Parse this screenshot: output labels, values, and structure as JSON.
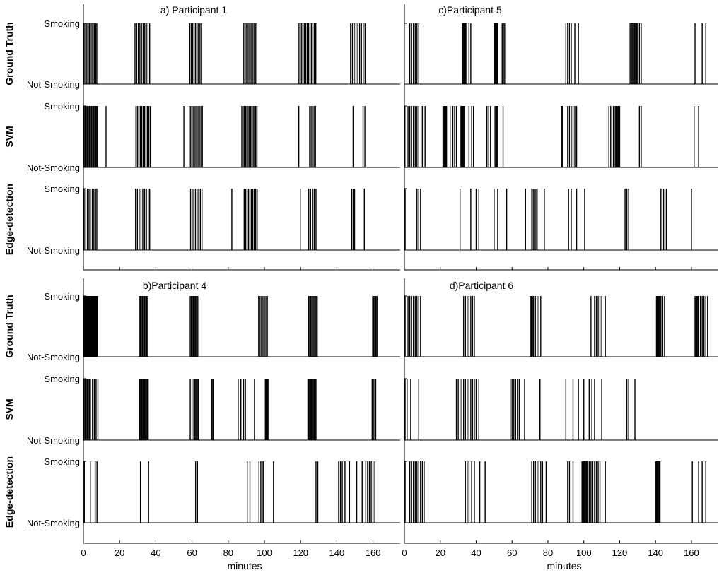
{
  "chart_data": {
    "type": "bar",
    "x_unit": "minutes",
    "xlim": [
      0,
      175
    ],
    "xticks": [
      0,
      20,
      40,
      60,
      80,
      100,
      120,
      140,
      160
    ],
    "state_labels": {
      "high": "Smoking",
      "low": "Not-Smoking"
    },
    "row_labels": [
      "Ground Truth",
      "SVM",
      "Edge-detection"
    ],
    "panels": [
      {
        "title": "a) Participant 1",
        "rows": [
          {
            "name": "Ground Truth",
            "events": [
              0.4,
              1.2,
              1.9,
              2.6,
              3.3,
              4.0,
              4.7,
              5.4,
              6.1,
              6.8,
              7.4,
              28.5,
              29.4,
              30.3,
              31.2,
              32.1,
              33.0,
              33.9,
              34.8,
              35.7,
              36.6,
              58.8,
              59.6,
              60.4,
              61.2,
              62.0,
              62.8,
              63.6,
              64.4,
              65.2,
              88.6,
              89.4,
              90.2,
              91.0,
              91.8,
              92.6,
              93.4,
              94.2,
              95.0,
              95.8,
              118.8,
              119.6,
              120.4,
              121.2,
              122.0,
              122.8,
              123.6,
              124.4,
              125.2,
              126.0,
              126.8,
              127.6,
              128.4,
              147.6,
              148.6,
              149.6,
              150.6,
              151.6,
              152.6,
              153.6,
              154.6,
              155.6
            ]
          },
          {
            "name": "SVM",
            "events": [
              0.3,
              0.9,
              1.5,
              2.1,
              2.7,
              3.3,
              3.9,
              4.5,
              5.1,
              5.7,
              6.3,
              6.9,
              7.4,
              7.9,
              12.5,
              29.0,
              29.8,
              30.6,
              31.4,
              32.2,
              33.0,
              33.8,
              34.6,
              35.4,
              36.2,
              37.0,
              55.5,
              58.5,
              59.3,
              60.1,
              60.9,
              61.7,
              62.5,
              63.3,
              64.1,
              64.9,
              65.7,
              87.5,
              88.2,
              88.9,
              89.6,
              90.3,
              91.0,
              91.7,
              92.4,
              93.1,
              93.8,
              94.5,
              95.2,
              95.9,
              119.0,
              125.0,
              125.8,
              126.6,
              127.4,
              128.2,
              149.0,
              154.5,
              155.5
            ]
          },
          {
            "name": "Edge-detection",
            "events": [
              0.4,
              1.3,
              2.2,
              3.1,
              4.0,
              4.9,
              5.8,
              6.7,
              7.4,
              28.8,
              29.8,
              30.8,
              31.8,
              32.8,
              33.8,
              34.8,
              35.8,
              36.6,
              59.2,
              60.1,
              61.0,
              61.9,
              62.8,
              63.7,
              64.6,
              65.5,
              82.0,
              88.8,
              89.6,
              90.4,
              91.2,
              92.0,
              92.8,
              93.6,
              94.4,
              95.2,
              96.0,
              119.8,
              124.5,
              125.5,
              126.5,
              127.5,
              128.5,
              148.2,
              149.0,
              149.8,
              155.2
            ]
          }
        ]
      },
      {
        "title": "c)Participant 5",
        "rows": [
          {
            "name": "Ground Truth",
            "events": [
              3.0,
              4.0,
              5.0,
              6.0,
              7.0,
              8.0,
              32.3,
              32.8,
              33.3,
              33.8,
              34.3,
              36.0,
              37.0,
              50.2,
              50.6,
              51.0,
              51.4,
              51.8,
              54.5,
              55.2,
              55.9,
              90.0,
              91.0,
              92.0,
              93.0,
              95.0,
              97.0,
              125.8,
              126.4,
              127.0,
              127.6,
              128.2,
              128.8,
              129.4,
              130.0,
              131.0,
              132.0,
              162.0,
              166.0,
              168.0
            ]
          },
          {
            "name": "SVM",
            "events": [
              0.3,
              2.0,
              3.0,
              4.0,
              5.0,
              6.0,
              7.0,
              8.0,
              10.0,
              11.5,
              21.5,
              22.0,
              22.5,
              23.0,
              23.5,
              25.5,
              27.0,
              28.0,
              29.0,
              31.5,
              32.0,
              32.5,
              33.0,
              33.5,
              36.0,
              37.5,
              38.5,
              46.0,
              47.0,
              48.0,
              50.5,
              51.0,
              51.5,
              52.0,
              55.0,
              87.5,
              88.0,
              91.0,
              92.0,
              93.0,
              94.0,
              95.0,
              96.0,
              114.0,
              115.0,
              116.5,
              117.5,
              118.0,
              118.5,
              119.0,
              119.5,
              120.0,
              131.0,
              132.0,
              161.5,
              164.0
            ]
          },
          {
            "name": "Edge-detection",
            "events": [
              0.4,
              7.0,
              8.0,
              9.0,
              31.0,
              37.0,
              40.0,
              41.5,
              50.0,
              52.0,
              57.0,
              67.5,
              71.0,
              71.8,
              72.5,
              73.3,
              74.0,
              78.0,
              91.5,
              93.0,
              96.0,
              100.5,
              123.0,
              124.0,
              125.0,
              143.0,
              144.5,
              146.0,
              160.0
            ]
          }
        ]
      },
      {
        "title": "b)Participant 4",
        "rows": [
          {
            "name": "Ground Truth",
            "events": [
              0.4,
              0.8,
              1.2,
              1.6,
              2.0,
              2.4,
              2.8,
              3.2,
              3.6,
              4.0,
              4.4,
              4.8,
              5.2,
              5.6,
              6.0,
              6.4,
              6.8,
              7.2,
              7.6,
              30.8,
              31.4,
              32.0,
              32.6,
              33.2,
              33.8,
              34.4,
              35.0,
              35.6,
              59.0,
              59.6,
              60.2,
              60.8,
              61.4,
              62.0,
              62.6,
              63.2,
              96.8,
              97.6,
              98.4,
              99.2,
              100.0,
              100.8,
              101.6,
              124.4,
              125.0,
              125.6,
              126.2,
              126.8,
              127.4,
              128.0,
              128.6,
              129.2,
              159.8,
              160.4,
              161.0,
              161.6,
              162.2
            ]
          },
          {
            "name": "SVM",
            "events": [
              0.3,
              0.9,
              1.5,
              2.1,
              2.7,
              3.3,
              4.0,
              5.0,
              6.0,
              7.0,
              8.0,
              30.8,
              31.3,
              31.8,
              32.3,
              32.8,
              33.3,
              33.8,
              34.3,
              34.8,
              35.3,
              35.8,
              59.0,
              60.0,
              61.0,
              61.6,
              62.2,
              62.8,
              63.4,
              71.0,
              71.6,
              85.5,
              87.0,
              88.5,
              89.5,
              94.5,
              100.5,
              101.0,
              101.5,
              102.0,
              124.0,
              124.5,
              125.0,
              125.5,
              126.0,
              126.5,
              127.0,
              127.5,
              128.0,
              128.5,
              159.5,
              160.5,
              161.5
            ]
          },
          {
            "name": "Edge-detection",
            "events": [
              0.5,
              4.0,
              6.5,
              7.5,
              31.5,
              36.0,
              62.0,
              63.0,
              90.5,
              92.0,
              97.0,
              98.0,
              98.8,
              99.5,
              105.0,
              128.5,
              129.5,
              141.0,
              142.0,
              143.0,
              144.5,
              147.0,
              151.0,
              154.0,
              156.0,
              157.0,
              158.0,
              159.0,
              160.0,
              161.0
            ]
          }
        ]
      },
      {
        "title": "d)Participant 6",
        "rows": [
          {
            "name": "Ground Truth",
            "events": [
              0.4,
              2.0,
              3.0,
              4.0,
              5.0,
              6.0,
              7.0,
              8.0,
              9.0,
              33.0,
              34.0,
              35.0,
              36.0,
              37.0,
              38.0,
              39.0,
              70.2,
              70.8,
              71.4,
              72.0,
              73.0,
              74.0,
              75.0,
              76.0,
              104.0,
              106.0,
              107.0,
              108.0,
              109.0,
              110.0,
              112.0,
              140.5,
              141.0,
              141.5,
              142.0,
              142.5,
              143.0,
              144.0,
              145.0,
              162.0,
              162.5,
              163.0,
              163.5,
              164.0,
              165.0,
              166.0,
              167.0,
              168.0,
              169.0
            ]
          },
          {
            "name": "SVM",
            "events": [
              0.4,
              1.5,
              3.5,
              8.0,
              29.0,
              30.0,
              31.0,
              32.0,
              33.0,
              34.0,
              35.0,
              36.0,
              37.0,
              38.0,
              39.0,
              40.0,
              41.5,
              59.0,
              60.0,
              61.0,
              62.0,
              63.0,
              64.0,
              67.0,
              75.2,
              75.6,
              90.0,
              94.0,
              97.0,
              100.0,
              103.0,
              104.5,
              106.0,
              110.0,
              124.0,
              125.0,
              128.5
            ]
          },
          {
            "name": "Edge-detection",
            "events": [
              0.4,
              3.0,
              4.0,
              5.0,
              6.0,
              7.0,
              8.0,
              9.0,
              10.0,
              11.0,
              34.0,
              35.0,
              36.0,
              37.5,
              39.0,
              42.0,
              45.0,
              71.0,
              72.0,
              73.0,
              74.0,
              75.0,
              76.0,
              77.0,
              79.0,
              91.0,
              92.0,
              94.0,
              99.0,
              99.4,
              99.8,
              100.2,
              100.6,
              101.0,
              101.5,
              102.0,
              103.0,
              104.0,
              105.0,
              106.0,
              107.0,
              108.0,
              109.0,
              112.0,
              140.0,
              140.5,
              141.0,
              141.5,
              142.0,
              142.5,
              160.5,
              164.0,
              166.0,
              168.0
            ]
          }
        ]
      }
    ]
  }
}
